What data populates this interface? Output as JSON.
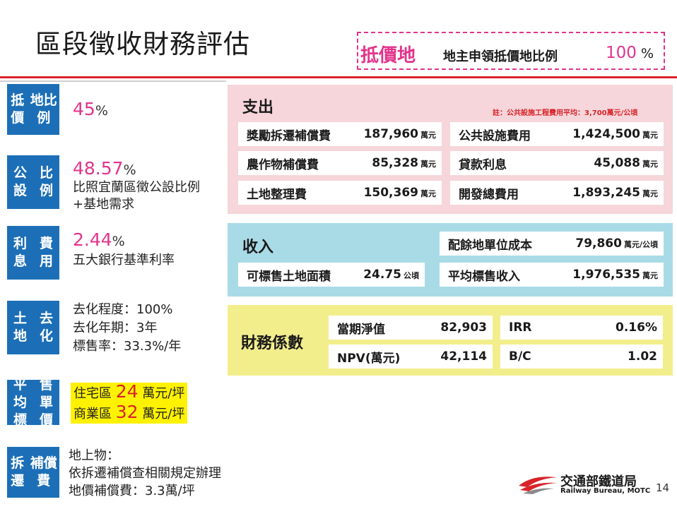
{
  "header": {
    "title": "區段徵收財務評估",
    "highlight_key": "抵價地",
    "highlight_text": "地主申領抵價地比例",
    "highlight_value": "100",
    "highlight_unit": "%"
  },
  "left": {
    "ratio": {
      "label": "抵價地比例",
      "value": "45",
      "unit": "%"
    },
    "public": {
      "label": "公設比例",
      "value": "48.57",
      "unit": "%",
      "desc1": "比照宜蘭區徵公設比例",
      "desc2": "+基地需求"
    },
    "interest": {
      "label": "利息費用",
      "value": "2.44",
      "unit": "%",
      "desc1": "五大銀行基準利率"
    },
    "land": {
      "label": "土地去化",
      "line1": "去化程度：100%",
      "line2": "去化年期：3年",
      "line3": "標售率：33.3%/年"
    },
    "price": {
      "label": "平均標售單價",
      "res_pre": "住宅區",
      "res_num": "24",
      "res_unit": "萬元/坪",
      "com_pre": "商業區",
      "com_num": "32",
      "com_unit": "萬元/坪"
    },
    "comp": {
      "label": "拆遷補償費",
      "line1": "地上物：",
      "line2": "依拆遷補償查相關規定辦理",
      "line3": "地價補償費：3.3萬/坪"
    }
  },
  "expenses": {
    "title": "支出",
    "note": "註：公共設施工程費用平均：3,700萬元/公頃",
    "items": [
      {
        "label": "獎勵拆遷補償費",
        "value": "187,960",
        "unit": "萬元"
      },
      {
        "label": "公共設施費用",
        "value": "1,424,500",
        "unit": "萬元"
      },
      {
        "label": "農作物補償費",
        "value": "85,328",
        "unit": "萬元"
      },
      {
        "label": "貸款利息",
        "value": "45,088",
        "unit": "萬元"
      },
      {
        "label": "土地整理費",
        "value": "150,369",
        "unit": "萬元"
      },
      {
        "label": "開發總費用",
        "value": "1,893,245",
        "unit": "萬元"
      }
    ]
  },
  "income": {
    "title": "收入",
    "items": [
      {
        "label": "配餘地單位成本",
        "value": "79,860",
        "unit": "萬元/公頃"
      },
      {
        "label": "可標售土地面積",
        "value": "24.75",
        "unit": "公頃"
      },
      {
        "label": "平均標售收入",
        "value": "1,976,535",
        "unit": "萬元"
      }
    ]
  },
  "finance": {
    "title": "財務係數",
    "items": [
      {
        "label": "當期淨值",
        "value": "82,903"
      },
      {
        "label": "IRR",
        "value": "0.16%"
      },
      {
        "label": "NPV(萬元)",
        "value": "42,114"
      },
      {
        "label": "B/C",
        "value": "1.02"
      }
    ]
  },
  "footer": {
    "logo_name": "交通部鐵道局",
    "logo_sub": "Railway Bureau, MOTC",
    "page": "14",
    "logo_colors": [
      "#d8232a",
      "#888888"
    ]
  }
}
